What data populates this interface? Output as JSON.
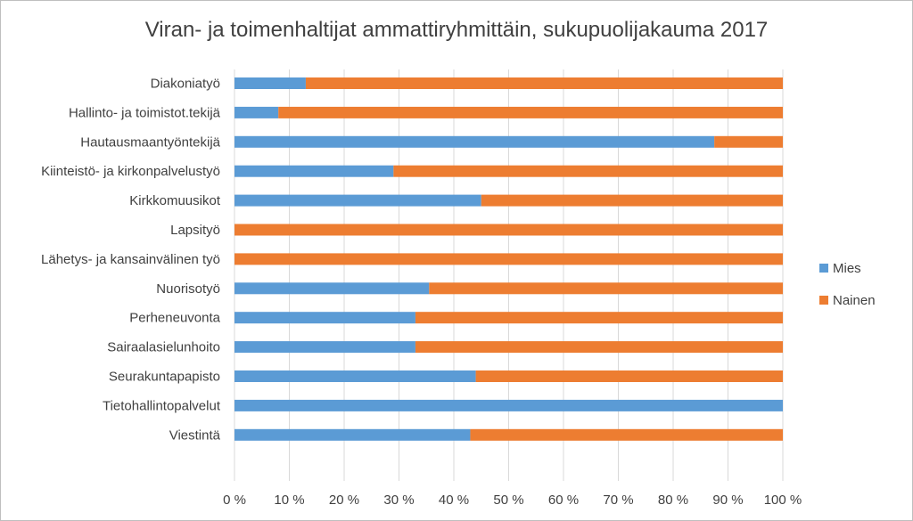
{
  "chart_data": {
    "type": "bar",
    "orientation": "horizontal",
    "stacked": "percent",
    "title": "Viran- ja toimenhaltijat ammattiryhmittäin, sukupuolijakauma 2017",
    "categories": [
      "Diakoniatyö",
      "Hallinto- ja toimistot.tekijä",
      "Hautausmaantyöntekijä",
      "Kiinteistö- ja kirkonpalvelustyö",
      "Kirkkomuusikot",
      "Lapsityö",
      "Lähetys- ja kansainvälinen työ",
      "Nuorisotyö",
      "Perheneuvonta",
      "Sairaalasielunhoito",
      "Seurakuntapapisto",
      "Tietohallintopalvelut",
      "Viestintä"
    ],
    "series": [
      {
        "name": "Mies",
        "color": "#5b9bd5",
        "values": [
          13,
          8,
          87.5,
          29,
          45,
          0,
          0,
          35.5,
          33,
          33,
          44,
          100,
          43
        ]
      },
      {
        "name": "Nainen",
        "color": "#ed7d31",
        "values": [
          87,
          92,
          12.5,
          71,
          55,
          100,
          100,
          64.5,
          67,
          67,
          56,
          0,
          57
        ]
      }
    ],
    "x_ticks": [
      "0 %",
      "10 %",
      "20 %",
      "30 %",
      "40 %",
      "50 %",
      "60 %",
      "70 %",
      "80 %",
      "90 %",
      "100 %"
    ],
    "xlim": [
      0,
      100
    ],
    "grid": true,
    "legend_position": "right"
  }
}
